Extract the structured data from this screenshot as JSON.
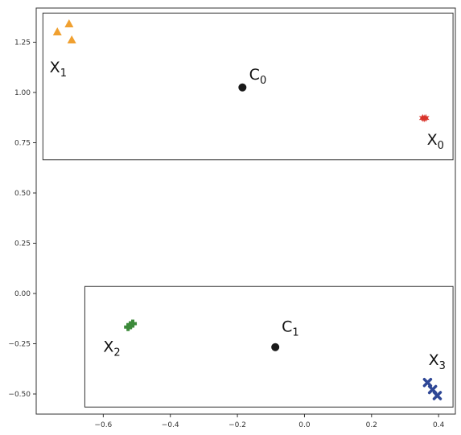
{
  "chart_data": {
    "type": "scatter",
    "title": "",
    "xlabel": "",
    "ylabel": "",
    "xlim": [
      -0.8,
      0.45
    ],
    "ylim": [
      -0.6,
      1.42
    ],
    "grid": false,
    "xticks": [
      -0.6,
      -0.4,
      -0.2,
      0.0,
      0.2,
      0.4
    ],
    "xtick_labels": [
      "−0.6",
      "−0.4",
      "−0.2",
      "0.0",
      "0.2",
      "0.4"
    ],
    "yticks": [
      -0.5,
      -0.25,
      0.0,
      0.25,
      0.5,
      0.75,
      1.0,
      1.25
    ],
    "ytick_labels": [
      "−0.50",
      "−0.25",
      "0.00",
      "0.25",
      "0.50",
      "0.75",
      "1.00",
      "1.25"
    ],
    "series": [
      {
        "marker": "triangle",
        "color": "#f0a030",
        "points": [
          [
            -0.737,
            1.3
          ],
          [
            -0.702,
            1.34
          ],
          [
            -0.694,
            1.26
          ]
        ]
      },
      {
        "marker": "star",
        "color": "#d9342b",
        "points": [
          [
            0.352,
            0.873
          ],
          [
            0.362,
            0.873
          ],
          [
            0.357,
            0.871
          ]
        ]
      },
      {
        "marker": "plus",
        "color": "#3c8a3a",
        "points": [
          [
            -0.526,
            -0.167
          ],
          [
            -0.519,
            -0.158
          ],
          [
            -0.512,
            -0.15
          ]
        ]
      },
      {
        "marker": "x",
        "color": "#2e4796",
        "points": [
          [
            0.367,
            -0.443
          ],
          [
            0.382,
            -0.478
          ],
          [
            0.396,
            -0.508
          ]
        ]
      },
      {
        "marker": "circle",
        "color": "#1a1a1a",
        "points": [
          [
            -0.185,
            1.025
          ],
          [
            -0.087,
            -0.267
          ]
        ]
      }
    ],
    "point_labels": [
      {
        "letter": "X",
        "sub": "1",
        "at": [
          -0.76,
          1.1
        ]
      },
      {
        "letter": "X",
        "sub": "0",
        "at": [
          0.365,
          0.74
        ]
      },
      {
        "letter": "C",
        "sub": "0",
        "at": [
          -0.165,
          1.065
        ]
      },
      {
        "letter": "X",
        "sub": "2",
        "at": [
          -0.6,
          -0.29
        ]
      },
      {
        "letter": "C",
        "sub": "1",
        "at": [
          -0.068,
          -0.19
        ]
      },
      {
        "letter": "X",
        "sub": "3",
        "at": [
          0.37,
          -0.355
        ]
      }
    ],
    "boxes": [
      {
        "x0": -0.78,
        "x1": 0.443,
        "y0": 0.665,
        "y1": 1.395
      },
      {
        "x0": -0.655,
        "x1": 0.443,
        "y0": -0.565,
        "y1": 0.035
      }
    ]
  }
}
